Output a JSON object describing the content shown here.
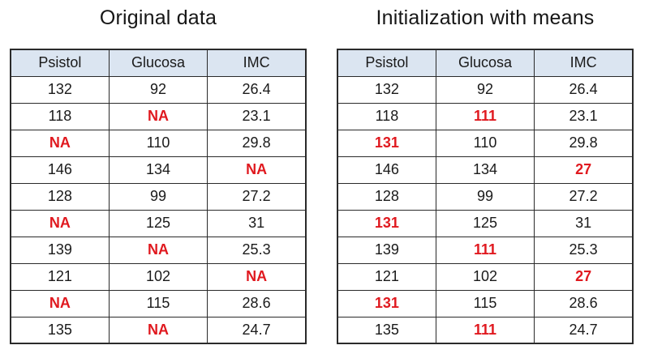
{
  "colors": {
    "header_bg": "#dbe5f1",
    "border": "#2a2a2a",
    "text": "#1a1a1a",
    "highlight_red": "#e0191f",
    "title": "#161616"
  },
  "chart_data": [
    {
      "type": "table",
      "title": "Original data",
      "columns": [
        "Psistol",
        "Glucosa",
        "IMC"
      ],
      "rows": [
        [
          {
            "text": "132",
            "highlight": false
          },
          {
            "text": "92",
            "highlight": false
          },
          {
            "text": "26.4",
            "highlight": false
          }
        ],
        [
          {
            "text": "118",
            "highlight": false
          },
          {
            "text": "NA",
            "highlight": true
          },
          {
            "text": "23.1",
            "highlight": false
          }
        ],
        [
          {
            "text": "NA",
            "highlight": true
          },
          {
            "text": "110",
            "highlight": false
          },
          {
            "text": "29.8",
            "highlight": false
          }
        ],
        [
          {
            "text": "146",
            "highlight": false
          },
          {
            "text": "134",
            "highlight": false
          },
          {
            "text": "NA",
            "highlight": true
          }
        ],
        [
          {
            "text": "128",
            "highlight": false
          },
          {
            "text": "99",
            "highlight": false
          },
          {
            "text": "27.2",
            "highlight": false
          }
        ],
        [
          {
            "text": "NA",
            "highlight": true
          },
          {
            "text": "125",
            "highlight": false
          },
          {
            "text": "31",
            "highlight": false
          }
        ],
        [
          {
            "text": "139",
            "highlight": false
          },
          {
            "text": "NA",
            "highlight": true
          },
          {
            "text": "25.3",
            "highlight": false
          }
        ],
        [
          {
            "text": "121",
            "highlight": false
          },
          {
            "text": "102",
            "highlight": false
          },
          {
            "text": "NA",
            "highlight": true
          }
        ],
        [
          {
            "text": "NA",
            "highlight": true
          },
          {
            "text": "115",
            "highlight": false
          },
          {
            "text": "28.6",
            "highlight": false
          }
        ],
        [
          {
            "text": "135",
            "highlight": false
          },
          {
            "text": "NA",
            "highlight": true
          },
          {
            "text": "24.7",
            "highlight": false
          }
        ]
      ]
    },
    {
      "type": "table",
      "title": "Initialization with means",
      "columns": [
        "Psistol",
        "Glucosa",
        "IMC"
      ],
      "rows": [
        [
          {
            "text": "132",
            "highlight": false
          },
          {
            "text": "92",
            "highlight": false
          },
          {
            "text": "26.4",
            "highlight": false
          }
        ],
        [
          {
            "text": "118",
            "highlight": false
          },
          {
            "text": "111",
            "highlight": true
          },
          {
            "text": "23.1",
            "highlight": false
          }
        ],
        [
          {
            "text": "131",
            "highlight": true
          },
          {
            "text": "110",
            "highlight": false
          },
          {
            "text": "29.8",
            "highlight": false
          }
        ],
        [
          {
            "text": "146",
            "highlight": false
          },
          {
            "text": "134",
            "highlight": false
          },
          {
            "text": "27",
            "highlight": true
          }
        ],
        [
          {
            "text": "128",
            "highlight": false
          },
          {
            "text": "99",
            "highlight": false
          },
          {
            "text": "27.2",
            "highlight": false
          }
        ],
        [
          {
            "text": "131",
            "highlight": true
          },
          {
            "text": "125",
            "highlight": false
          },
          {
            "text": "31",
            "highlight": false
          }
        ],
        [
          {
            "text": "139",
            "highlight": false
          },
          {
            "text": "111",
            "highlight": true
          },
          {
            "text": "25.3",
            "highlight": false
          }
        ],
        [
          {
            "text": "121",
            "highlight": false
          },
          {
            "text": "102",
            "highlight": false
          },
          {
            "text": "27",
            "highlight": true
          }
        ],
        [
          {
            "text": "131",
            "highlight": true
          },
          {
            "text": "115",
            "highlight": false
          },
          {
            "text": "28.6",
            "highlight": false
          }
        ],
        [
          {
            "text": "135",
            "highlight": false
          },
          {
            "text": "111",
            "highlight": true
          },
          {
            "text": "24.7",
            "highlight": false
          }
        ]
      ]
    }
  ]
}
